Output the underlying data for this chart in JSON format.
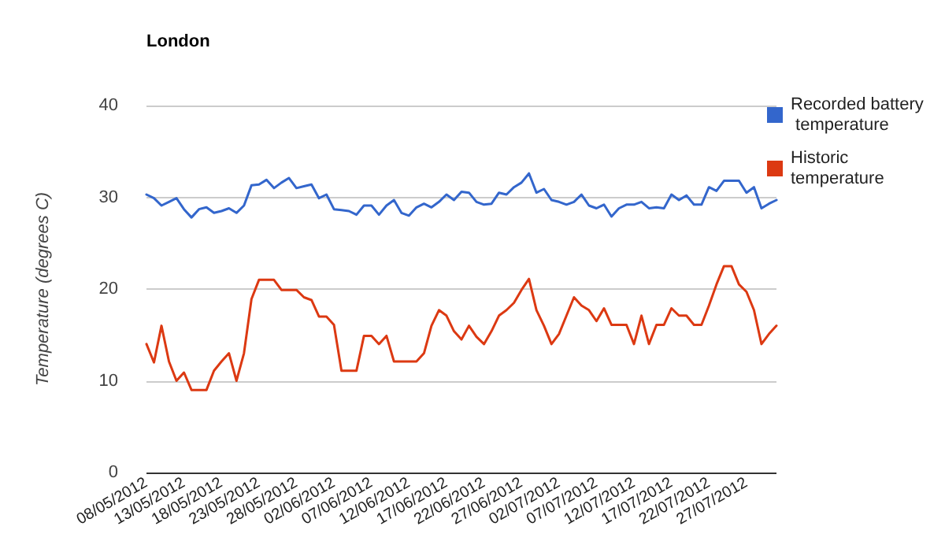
{
  "chart_data": {
    "type": "line",
    "title": "London",
    "ylabel": "Temperature (degrees C)",
    "categories": [
      "08/05/2012",
      null,
      null,
      null,
      null,
      "13/05/2012",
      null,
      null,
      null,
      null,
      "18/05/2012",
      null,
      null,
      null,
      null,
      "23/05/2012",
      null,
      null,
      null,
      null,
      "28/05/2012",
      null,
      null,
      null,
      null,
      "02/06/2012",
      null,
      null,
      null,
      null,
      "07/06/2012",
      null,
      null,
      null,
      null,
      "12/06/2012",
      null,
      null,
      null,
      null,
      "17/06/2012",
      null,
      null,
      null,
      null,
      "22/06/2012",
      null,
      null,
      null,
      null,
      "27/06/2012",
      null,
      null,
      null,
      null,
      "02/07/2012",
      null,
      null,
      null,
      null,
      "07/07/2012",
      null,
      null,
      null,
      null,
      "12/07/2012",
      null,
      null,
      null,
      null,
      "17/07/2012",
      null,
      null,
      null,
      null,
      "22/07/2012",
      null,
      null,
      null,
      null,
      "27/07/2012",
      null,
      null,
      null,
      null
    ],
    "series": [
      {
        "name": "Recorded battery temperature",
        "color": "#3366cc",
        "values": [
          30.3,
          29.9,
          29.1,
          29.5,
          29.9,
          28.7,
          27.8,
          28.7,
          28.9,
          28.3,
          28.5,
          28.8,
          28.3,
          29.1,
          31.3,
          31.4,
          31.9,
          31.0,
          31.6,
          32.1,
          31.0,
          31.2,
          31.4,
          29.9,
          30.3,
          28.7,
          28.6,
          28.5,
          28.1,
          29.1,
          29.1,
          28.1,
          29.1,
          29.7,
          28.3,
          28.0,
          28.9,
          29.3,
          28.9,
          29.5,
          30.3,
          29.7,
          30.6,
          30.5,
          29.5,
          29.2,
          29.3,
          30.5,
          30.3,
          31.1,
          31.6,
          32.6,
          30.5,
          30.9,
          29.7,
          29.5,
          29.2,
          29.5,
          30.3,
          29.1,
          28.8,
          29.2,
          27.9,
          28.8,
          29.2,
          29.2,
          29.5,
          28.8,
          28.9,
          28.8,
          30.3,
          29.7,
          30.2,
          29.2,
          29.2,
          31.1,
          30.7,
          31.8,
          31.8,
          31.8,
          30.5,
          31.1,
          28.8,
          29.3,
          29.7
        ]
      },
      {
        "name": "Historic temperature",
        "color": "#dc3912",
        "values": [
          14.0,
          12.0,
          16.0,
          12.1,
          10.0,
          10.9,
          9.0,
          9.0,
          9.0,
          11.1,
          12.1,
          13.0,
          10.0,
          13.0,
          18.9,
          21.0,
          21.0,
          21.0,
          19.9,
          19.9,
          19.9,
          19.1,
          18.8,
          17.0,
          17.0,
          16.1,
          11.1,
          11.1,
          11.1,
          14.9,
          14.9,
          14.0,
          14.9,
          12.1,
          12.1,
          12.1,
          12.1,
          13.0,
          16.0,
          17.7,
          17.1,
          15.4,
          14.5,
          16.0,
          14.8,
          14.0,
          15.4,
          17.1,
          17.7,
          18.5,
          19.9,
          21.1,
          17.7,
          16.0,
          14.0,
          15.1,
          17.1,
          19.1,
          18.2,
          17.7,
          16.5,
          17.9,
          16.1,
          16.1,
          16.1,
          14.0,
          17.1,
          14.0,
          16.1,
          16.1,
          17.9,
          17.1,
          17.1,
          16.1,
          16.1,
          18.2,
          20.5,
          22.5,
          22.5,
          20.5,
          19.7,
          17.7,
          14.0,
          15.1,
          16.0
        ]
      }
    ],
    "ylim": [
      0,
      40
    ],
    "yticks": [
      0,
      10,
      20,
      30,
      40
    ],
    "grid": "y",
    "legend": "right",
    "marker": "none",
    "line_style": "solid"
  }
}
